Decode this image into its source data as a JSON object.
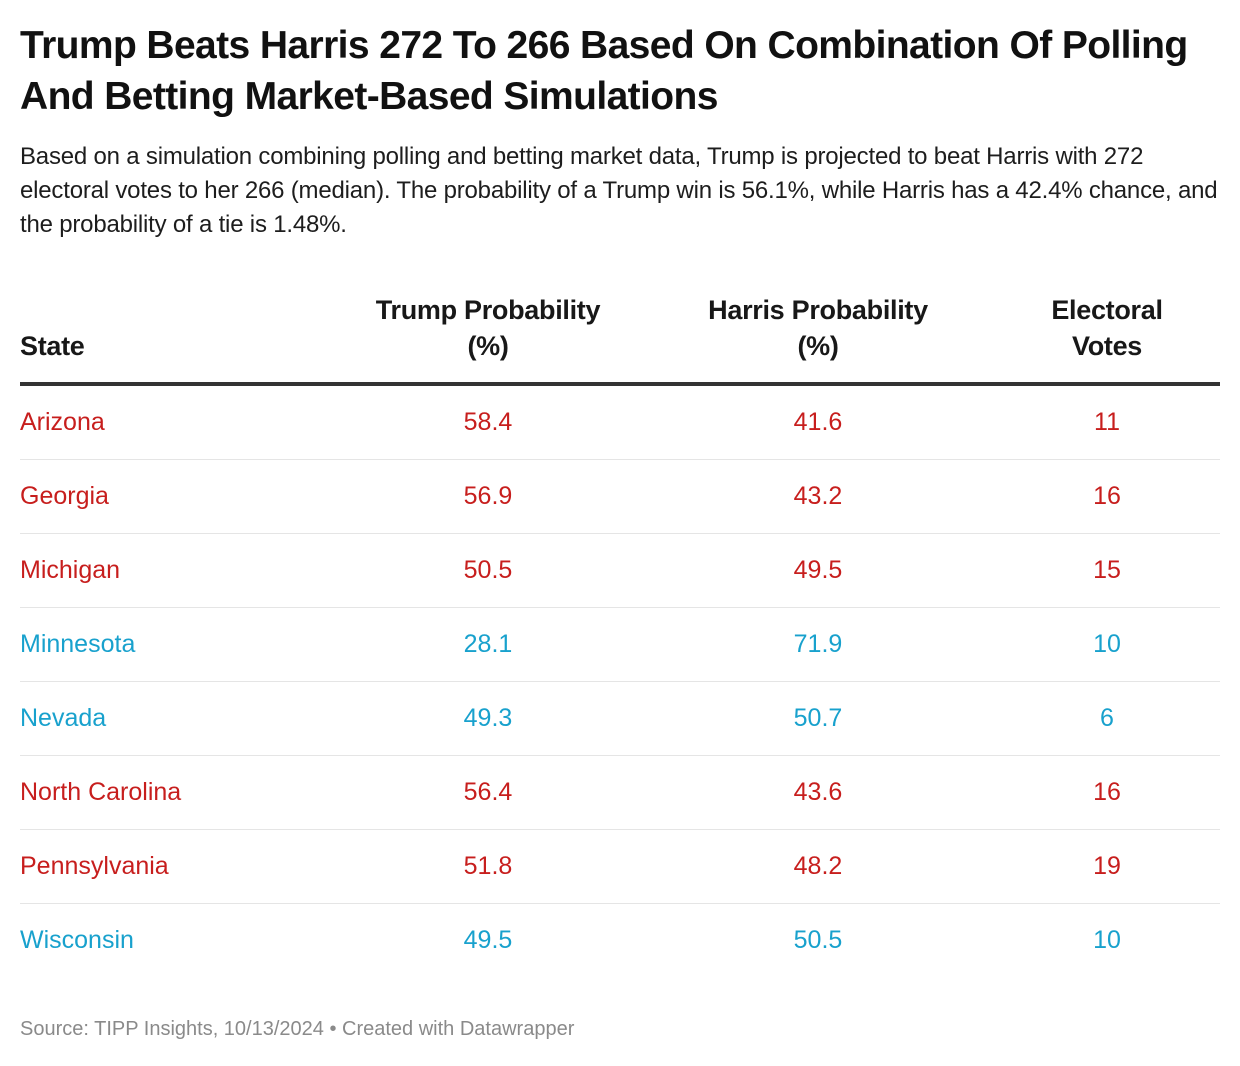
{
  "title": "Trump Beats Harris 272 To 266 Based On Combination Of Polling And Betting Market-Based Simulations",
  "description": "Based on a simulation combining polling and betting market data, Trump is projected to beat Harris with 272 electoral votes to her 266 (median). The probability of a Trump win is 56.1%, while Harris has a 42.4% chance, and the probability of a tie is 1.48%.",
  "colors": {
    "trump": "#c71e1d",
    "harris": "#18a1cd"
  },
  "footer": "Source: TIPP Insights, 10/13/2024 • Created with Datawrapper",
  "chart_data": {
    "type": "table",
    "title": "Trump Beats Harris 272 To 266 Based On Combination Of Polling And Betting Market-Based Simulations",
    "columns": [
      "State",
      "Trump Probability (%)",
      "Harris Probability (%)",
      "Electoral Votes"
    ],
    "rows": [
      {
        "state": "Arizona",
        "trump": "58.4",
        "harris": "41.6",
        "ev": "11",
        "lean": "trump"
      },
      {
        "state": "Georgia",
        "trump": "56.9",
        "harris": "43.2",
        "ev": "16",
        "lean": "trump"
      },
      {
        "state": "Michigan",
        "trump": "50.5",
        "harris": "49.5",
        "ev": "15",
        "lean": "trump"
      },
      {
        "state": "Minnesota",
        "trump": "28.1",
        "harris": "71.9",
        "ev": "10",
        "lean": "harris"
      },
      {
        "state": "Nevada",
        "trump": "49.3",
        "harris": "50.7",
        "ev": "6",
        "lean": "harris"
      },
      {
        "state": "North Carolina",
        "trump": "56.4",
        "harris": "43.6",
        "ev": "16",
        "lean": "trump"
      },
      {
        "state": "Pennsylvania",
        "trump": "51.8",
        "harris": "48.2",
        "ev": "19",
        "lean": "trump"
      },
      {
        "state": "Wisconsin",
        "trump": "49.5",
        "harris": "50.5",
        "ev": "10",
        "lean": "harris"
      }
    ]
  }
}
